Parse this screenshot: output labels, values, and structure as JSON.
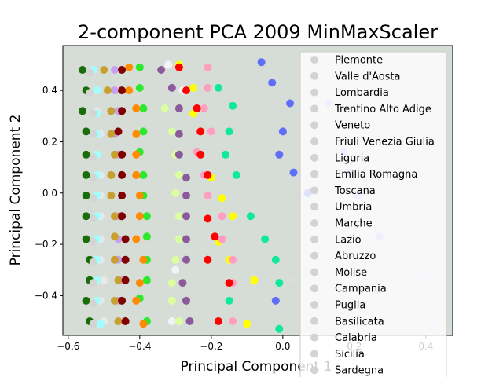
{
  "chart_data": {
    "type": "scatter",
    "title": "2-component PCA 2009 MinMaxScaler",
    "xlabel": "Principal Component 1",
    "ylabel": "Principal Component 2",
    "xlim": [
      -0.615,
      0.475
    ],
    "ylim": [
      -0.555,
      0.575
    ],
    "xticks": [
      -0.6,
      -0.4,
      -0.2,
      0.0,
      0.2,
      0.4
    ],
    "xtick_labels": [
      "−0.6",
      "−0.4",
      "−0.2",
      "0.0",
      "0.2",
      "0.4"
    ],
    "yticks": [
      -0.4,
      -0.2,
      0.0,
      0.2,
      0.4
    ],
    "ytick_labels": [
      "−0.4",
      "−0.2",
      "0.0",
      "0.2",
      "0.4"
    ],
    "background": "#d6ddd6",
    "legend_placement": "right (upper right, extends below plot)",
    "grid": false,
    "series": [
      {
        "name": "Piemonte",
        "color": "#f2f2f8",
        "points": [
          [
            -0.32,
            0.5
          ],
          [
            -0.28,
            0.4
          ],
          [
            -0.3,
            -0.3
          ],
          [
            -0.31,
            -0.5
          ]
        ]
      },
      {
        "name": "Valle d'Aosta",
        "color": "#d9d9fb",
        "points": [
          [
            0.14,
            0.44
          ],
          [
            0.28,
            -0.09
          ],
          [
            0.36,
            -0.25
          ],
          [
            0.4,
            -0.33
          ],
          [
            0.42,
            -0.51
          ]
        ]
      },
      {
        "name": "Lombardia",
        "color": "#aeb2fb",
        "points": [
          [
            0.13,
            0.35
          ],
          [
            0.17,
            0.16
          ],
          [
            0.19,
            0.08
          ],
          [
            0.21,
            -0.01
          ],
          [
            0.27,
            -0.17
          ]
        ]
      },
      {
        "name": "Trentino Alto Adige",
        "color": "#5f6ff8",
        "points": [
          [
            -0.06,
            0.51
          ],
          [
            -0.03,
            0.43
          ],
          [
            0.02,
            0.35
          ],
          [
            0.0,
            0.24
          ],
          [
            -0.01,
            0.15
          ],
          [
            0.03,
            0.08
          ],
          [
            0.07,
            0.0
          ],
          [
            -0.02,
            -0.42
          ]
        ]
      },
      {
        "name": "Veneto",
        "color": "#10e8a0",
        "points": [
          [
            -0.18,
            0.41
          ],
          [
            -0.14,
            0.34
          ],
          [
            -0.15,
            0.24
          ],
          [
            -0.16,
            0.15
          ],
          [
            -0.13,
            0.07
          ],
          [
            -0.09,
            -0.09
          ],
          [
            -0.05,
            -0.18
          ],
          [
            -0.02,
            -0.26
          ],
          [
            -0.01,
            -0.35
          ],
          [
            -0.15,
            -0.42
          ],
          [
            -0.01,
            -0.53
          ]
        ]
      },
      {
        "name": "Friuli Venezia Giulia",
        "color": "#ffff00",
        "points": [
          [
            -0.29,
            0.5
          ],
          [
            -0.25,
            0.41
          ],
          [
            -0.25,
            0.31
          ],
          [
            -0.23,
            0.24
          ],
          [
            -0.2,
            0.06
          ],
          [
            -0.17,
            -0.02
          ],
          [
            -0.14,
            -0.09
          ],
          [
            -0.18,
            -0.19
          ],
          [
            -0.15,
            -0.26
          ],
          [
            -0.08,
            -0.34
          ],
          [
            -0.1,
            -0.51
          ]
        ]
      },
      {
        "name": "Liguria",
        "color": "#ff9ec0",
        "points": [
          [
            -0.21,
            0.49
          ],
          [
            -0.21,
            0.41
          ],
          [
            -0.22,
            0.33
          ],
          [
            -0.2,
            0.24
          ],
          [
            -0.24,
            0.16
          ],
          [
            -0.22,
            0.07
          ],
          [
            -0.21,
            -0.01
          ],
          [
            -0.17,
            -0.09
          ],
          [
            -0.17,
            -0.18
          ],
          [
            -0.14,
            -0.26
          ],
          [
            -0.14,
            -0.35
          ],
          [
            -0.27,
            -0.42
          ],
          [
            -0.14,
            -0.5
          ]
        ]
      },
      {
        "name": "Emilia Romagna",
        "color": "#ff0000",
        "points": [
          [
            -0.29,
            0.49
          ],
          [
            -0.27,
            0.4
          ],
          [
            -0.24,
            0.33
          ],
          [
            -0.23,
            0.24
          ],
          [
            -0.23,
            0.15
          ],
          [
            -0.21,
            0.07
          ],
          [
            -0.21,
            -0.1
          ],
          [
            -0.19,
            -0.17
          ],
          [
            -0.21,
            -0.26
          ],
          [
            -0.15,
            -0.35
          ],
          [
            -0.18,
            -0.5
          ]
        ]
      },
      {
        "name": "Toscana",
        "color": "#dbff9e",
        "points": [
          [
            -0.33,
            0.33
          ],
          [
            -0.31,
            0.24
          ],
          [
            -0.3,
            0.15
          ],
          [
            -0.29,
            0.07
          ],
          [
            -0.3,
            0.0
          ],
          [
            -0.29,
            -0.09
          ],
          [
            -0.29,
            -0.18
          ],
          [
            -0.3,
            -0.26
          ],
          [
            -0.31,
            -0.35
          ],
          [
            -0.31,
            -0.42
          ],
          [
            -0.29,
            -0.5
          ]
        ]
      },
      {
        "name": "Umbria",
        "color": "#8b5a9b",
        "points": [
          [
            -0.34,
            0.48
          ],
          [
            -0.31,
            0.41
          ],
          [
            -0.29,
            0.33
          ],
          [
            -0.29,
            0.23
          ],
          [
            -0.29,
            0.15
          ],
          [
            -0.27,
            0.06
          ],
          [
            -0.27,
            -0.01
          ],
          [
            -0.27,
            -0.09
          ],
          [
            -0.27,
            -0.18
          ],
          [
            -0.27,
            -0.26
          ],
          [
            -0.28,
            -0.35
          ],
          [
            -0.27,
            -0.42
          ],
          [
            -0.26,
            -0.5
          ]
        ]
      },
      {
        "name": "Marche",
        "color": "#2ee82e",
        "points": [
          [
            -0.4,
            0.49
          ],
          [
            -0.4,
            0.41
          ],
          [
            -0.39,
            0.33
          ],
          [
            -0.39,
            0.24
          ],
          [
            -0.4,
            0.16
          ],
          [
            -0.39,
            0.07
          ],
          [
            -0.39,
            -0.01
          ],
          [
            -0.38,
            -0.09
          ],
          [
            -0.38,
            -0.17
          ],
          [
            -0.38,
            -0.26
          ],
          [
            -0.38,
            -0.34
          ],
          [
            -0.4,
            -0.41
          ],
          [
            -0.38,
            -0.5
          ]
        ]
      },
      {
        "name": "Lazio",
        "color": "#ff8c00",
        "points": [
          [
            -0.43,
            0.49
          ],
          [
            -0.43,
            0.4
          ],
          [
            -0.41,
            0.33
          ],
          [
            -0.41,
            0.23
          ],
          [
            -0.41,
            0.15
          ],
          [
            -0.41,
            0.07
          ],
          [
            -0.4,
            -0.01
          ],
          [
            -0.4,
            -0.09
          ],
          [
            -0.41,
            -0.18
          ],
          [
            -0.39,
            -0.26
          ],
          [
            -0.4,
            -0.35
          ],
          [
            -0.41,
            -0.42
          ],
          [
            -0.39,
            -0.51
          ]
        ]
      },
      {
        "name": "Abruzzo",
        "color": "#c8a0f0",
        "points": [
          [
            -0.47,
            0.48
          ],
          [
            -0.47,
            0.4
          ],
          [
            -0.46,
            0.32
          ],
          [
            -0.47,
            0.23
          ],
          [
            -0.46,
            0.15
          ],
          [
            -0.48,
            0.07
          ],
          [
            -0.45,
            -0.01
          ],
          [
            -0.46,
            -0.09
          ],
          [
            -0.46,
            -0.18
          ],
          [
            -0.46,
            -0.26
          ],
          [
            -0.45,
            -0.34
          ],
          [
            -0.46,
            -0.42
          ],
          [
            -0.46,
            -0.5
          ]
        ]
      },
      {
        "name": "Molise",
        "color": "#c8a030",
        "points": [
          [
            -0.5,
            0.48
          ],
          [
            -0.49,
            0.4
          ],
          [
            -0.48,
            0.32
          ],
          [
            -0.48,
            0.23
          ],
          [
            -0.47,
            0.15
          ],
          [
            -0.48,
            0.07
          ],
          [
            -0.48,
            -0.01
          ],
          [
            -0.47,
            -0.09
          ],
          [
            -0.47,
            -0.17
          ],
          [
            -0.47,
            -0.26
          ],
          [
            -0.46,
            -0.34
          ],
          [
            -0.47,
            -0.42
          ],
          [
            -0.46,
            -0.5
          ]
        ]
      },
      {
        "name": "Campania",
        "color": "#1a6e0a",
        "points": [
          [
            -0.56,
            0.48
          ],
          [
            -0.55,
            0.4
          ],
          [
            -0.56,
            0.32
          ],
          [
            -0.55,
            0.24
          ],
          [
            -0.55,
            0.15
          ],
          [
            -0.55,
            0.07
          ],
          [
            -0.55,
            -0.01
          ],
          [
            -0.55,
            -0.09
          ],
          [
            -0.55,
            -0.18
          ],
          [
            -0.54,
            -0.26
          ],
          [
            -0.54,
            -0.34
          ],
          [
            -0.55,
            -0.42
          ],
          [
            -0.54,
            -0.5
          ]
        ]
      },
      {
        "name": "Puglia",
        "color": "#800000",
        "points": [
          [
            -0.45,
            0.48
          ],
          [
            -0.45,
            0.4
          ],
          [
            -0.45,
            0.32
          ],
          [
            -0.46,
            0.24
          ],
          [
            -0.45,
            0.15
          ],
          [
            -0.45,
            0.07
          ],
          [
            -0.45,
            -0.01
          ],
          [
            -0.45,
            -0.09
          ],
          [
            -0.44,
            -0.18
          ],
          [
            -0.44,
            -0.26
          ],
          [
            -0.44,
            -0.34
          ],
          [
            -0.45,
            -0.42
          ],
          [
            -0.44,
            -0.5
          ]
        ]
      },
      {
        "name": "Basilicata",
        "color": "#e8e8e8",
        "points": [
          [
            -0.53,
            0.48
          ],
          [
            -0.52,
            0.4
          ],
          [
            -0.52,
            0.32
          ],
          [
            -0.51,
            0.23
          ],
          [
            -0.52,
            0.15
          ],
          [
            -0.51,
            0.07
          ],
          [
            -0.51,
            -0.01
          ],
          [
            -0.51,
            -0.09
          ],
          [
            -0.51,
            -0.18
          ],
          [
            -0.51,
            -0.26
          ],
          [
            -0.5,
            -0.34
          ],
          [
            -0.51,
            -0.42
          ],
          [
            -0.5,
            -0.5
          ]
        ]
      },
      {
        "name": "Calabria",
        "color": "#9fffff",
        "points": [
          [
            -0.53,
            0.48
          ],
          [
            -0.52,
            0.4
          ],
          [
            -0.52,
            0.31
          ],
          [
            -0.52,
            0.23
          ],
          [
            -0.52,
            0.15
          ],
          [
            -0.52,
            0.07
          ],
          [
            -0.52,
            -0.01
          ],
          [
            -0.52,
            -0.09
          ],
          [
            -0.52,
            -0.18
          ],
          [
            -0.52,
            -0.26
          ],
          [
            -0.52,
            -0.34
          ],
          [
            -0.52,
            -0.42
          ],
          [
            -0.51,
            -0.51
          ]
        ]
      },
      {
        "name": "Sicilia",
        "color": "#d4d4d4",
        "points": [
          [
            -0.54,
            0.47
          ],
          [
            -0.54,
            0.39
          ],
          [
            -0.53,
            0.31
          ],
          [
            -0.53,
            0.23
          ],
          [
            -0.53,
            0.14
          ],
          [
            -0.53,
            0.06
          ],
          [
            -0.53,
            -0.02
          ],
          [
            -0.53,
            -0.1
          ],
          [
            -0.53,
            -0.19
          ],
          [
            -0.53,
            -0.27
          ],
          [
            -0.53,
            -0.35
          ],
          [
            -0.53,
            -0.43
          ],
          [
            -0.53,
            -0.51
          ]
        ]
      },
      {
        "name": "Sardegna",
        "color": "#dcdcdc",
        "points": [
          [
            0.12,
            0.5
          ],
          [
            0.14,
            0.33
          ],
          [
            0.15,
            0.25
          ],
          [
            0.14,
            0.08
          ],
          [
            0.12,
            -0.02
          ],
          [
            0.1,
            -0.1
          ],
          [
            0.12,
            -0.19
          ],
          [
            0.06,
            -0.26
          ],
          [
            0.02,
            -0.34
          ],
          [
            0.09,
            -0.51
          ]
        ]
      }
    ]
  }
}
